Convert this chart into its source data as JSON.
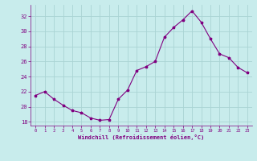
{
  "x": [
    0,
    1,
    2,
    3,
    4,
    5,
    6,
    7,
    8,
    9,
    10,
    11,
    12,
    13,
    14,
    15,
    16,
    17,
    18,
    19,
    20,
    21,
    22,
    23
  ],
  "y": [
    21.5,
    22.0,
    21.0,
    20.2,
    19.5,
    19.2,
    18.5,
    18.2,
    18.3,
    21.0,
    22.2,
    24.8,
    25.3,
    26.0,
    29.2,
    30.5,
    31.5,
    32.7,
    31.2,
    29.0,
    27.0,
    26.5,
    25.2,
    24.5
  ],
  "line_color": "#800080",
  "marker": "*",
  "marker_size": 2.5,
  "bg_color": "#c8ecec",
  "grid_color": "#aad4d4",
  "xlabel": "Windchill (Refroidissement éolien,°C)",
  "tick_color": "#800080",
  "ylim": [
    17.5,
    33.5
  ],
  "xlim": [
    -0.5,
    23.5
  ],
  "yticks": [
    18,
    20,
    22,
    24,
    26,
    28,
    30,
    32
  ],
  "xticks": [
    0,
    1,
    2,
    3,
    4,
    5,
    6,
    7,
    8,
    9,
    10,
    11,
    12,
    13,
    14,
    15,
    16,
    17,
    18,
    19,
    20,
    21,
    22,
    23
  ],
  "figsize": [
    3.2,
    2.0
  ],
  "dpi": 100
}
